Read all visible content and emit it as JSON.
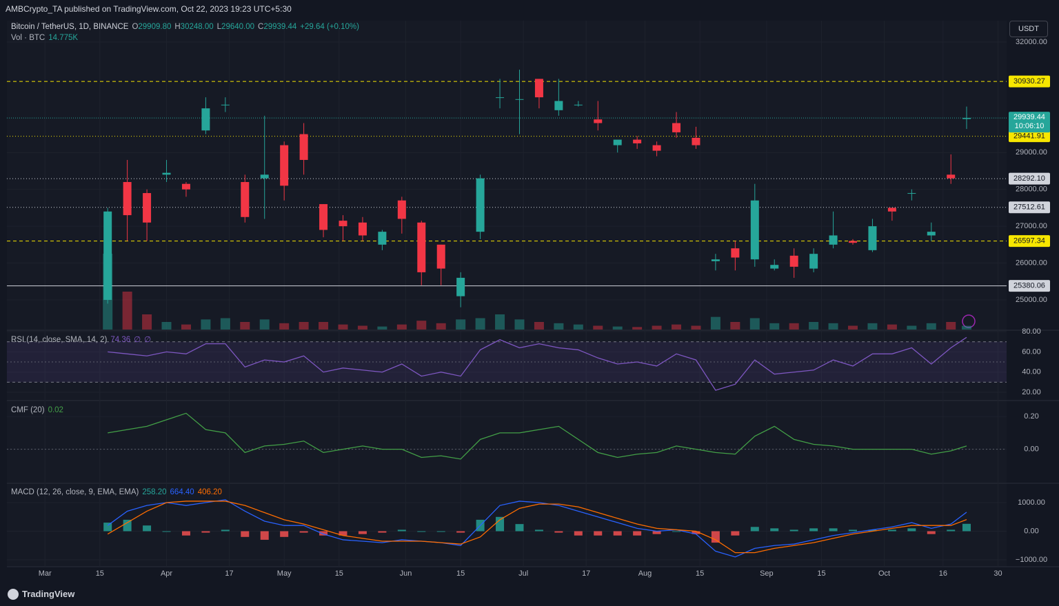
{
  "published": "AMBCrypto_TA published on TradingView.com, Oct 22, 2023 19:23 UTC+5:30",
  "brand": "TradingView",
  "chart_data": [
    {
      "type": "candlestick",
      "title": "Bitcoin / TetherUS, 1D, BINANCE",
      "legend": [
        {
          "key": "O",
          "text": "29909.80"
        },
        {
          "key": "H",
          "text": "30248.00"
        },
        {
          "key": "L",
          "text": "29640.00"
        },
        {
          "key": "C",
          "text": "29939.44"
        },
        {
          "key": "",
          "text": "+29.64 (+0.10%)"
        }
      ],
      "currency": "USDT",
      "x": [
        16,
        21,
        26,
        31,
        36,
        41,
        46,
        51,
        56,
        61,
        66,
        71,
        76,
        81,
        86,
        91,
        96,
        101,
        106,
        111,
        116,
        121,
        126,
        131,
        136,
        141,
        146,
        151,
        156,
        161,
        166,
        171,
        176,
        181,
        186,
        191,
        196,
        201,
        206,
        211,
        216,
        221,
        226,
        231,
        235
      ],
      "open": [
        25000,
        28200,
        27900,
        28400,
        28150,
        29600,
        30300,
        28200,
        28300,
        29200,
        29500,
        27600,
        27150,
        27100,
        26500,
        27700,
        27100,
        26500,
        25100,
        26850,
        30500,
        30450,
        31000,
        30150,
        30300,
        29900,
        29200,
        29350,
        29200,
        29800,
        29400,
        26050,
        26400,
        26100,
        25850,
        26200,
        25850,
        26500,
        26600,
        26350,
        27500,
        27900,
        26750,
        28400,
        29909.8
      ],
      "high": [
        27500,
        28800,
        28000,
        28800,
        28200,
        30500,
        30500,
        28400,
        30000,
        29300,
        29800,
        27600,
        27300,
        27250,
        26900,
        27800,
        27150,
        26500,
        25750,
        28400,
        31000,
        31250,
        31000,
        31000,
        30400,
        30400,
        29300,
        29450,
        29300,
        30100,
        29700,
        26250,
        26600,
        28150,
        26100,
        26400,
        26400,
        27400,
        26650,
        27200,
        27500,
        28000,
        27100,
        28950,
        30248
      ],
      "low": [
        24900,
        26600,
        26600,
        28200,
        27800,
        29500,
        30100,
        27100,
        27200,
        27700,
        28400,
        26700,
        26600,
        26600,
        26350,
        26800,
        25400,
        25400,
        24800,
        26650,
        30200,
        29500,
        30200,
        30000,
        30250,
        29600,
        29000,
        29100,
        28900,
        29400,
        29100,
        25800,
        25800,
        25900,
        25800,
        25600,
        25750,
        26400,
        26500,
        26300,
        27150,
        27700,
        26600,
        28150,
        29640
      ],
      "close": [
        27400,
        27300,
        27100,
        28450,
        28000,
        30200,
        30300,
        27250,
        28400,
        28100,
        28800,
        26900,
        27000,
        26750,
        26850,
        27200,
        25750,
        25850,
        25600,
        28300,
        30500,
        30450,
        30500,
        30400,
        30300,
        29800,
        29350,
        29250,
        29050,
        29550,
        29200,
        26100,
        26150,
        27700,
        25950,
        25900,
        26250,
        26750,
        26550,
        27000,
        27400,
        27900,
        26850,
        28300,
        29939.44
      ],
      "up_color": "#26a69a",
      "down_color": "#f23645",
      "xlim": [
        -9.7,
        245.2
      ],
      "xticks": [
        {
          "value": 0,
          "label": "Mar"
        },
        {
          "value": 14,
          "label": "15"
        },
        {
          "value": 31,
          "label": "Apr"
        },
        {
          "value": 47,
          "label": "17"
        },
        {
          "value": 61,
          "label": "May"
        },
        {
          "value": 75,
          "label": "15"
        },
        {
          "value": 92,
          "label": "Jun"
        },
        {
          "value": 106,
          "label": "15"
        },
        {
          "value": 122,
          "label": "Jul"
        },
        {
          "value": 138,
          "label": "17"
        },
        {
          "value": 153,
          "label": "Aug"
        },
        {
          "value": 167,
          "label": "15"
        },
        {
          "value": 184,
          "label": "Sep"
        },
        {
          "value": 198,
          "label": "15"
        },
        {
          "value": 214,
          "label": "Oct"
        },
        {
          "value": 229,
          "label": "16"
        },
        {
          "value": 243,
          "label": "30"
        }
      ],
      "ylim": [
        24195,
        32580
      ],
      "yticks": [
        {
          "value": 25000,
          "label": "25000.00"
        },
        {
          "value": 26000,
          "label": "26000.00"
        },
        {
          "value": 27000,
          "label": "27000.00"
        },
        {
          "value": 28000,
          "label": "28000.00"
        },
        {
          "value": 29000,
          "label": "29000.00"
        },
        {
          "value": 32000,
          "label": "32000.00"
        }
      ],
      "levels": [
        {
          "value": 30930.27,
          "label": "30930.27",
          "color": "#f7e600",
          "style": "dashed"
        },
        {
          "value": 29441.91,
          "label": "29441.91",
          "color": "#f7e600",
          "style": "dotted"
        },
        {
          "value": 28292.1,
          "label": "28292.10",
          "color": "#d1d4dc",
          "style": "dotted"
        },
        {
          "value": 27512.61,
          "label": "27512.61",
          "color": "#d1d4dc",
          "style": "dotted"
        },
        {
          "value": 26597.34,
          "label": "26597.34",
          "color": "#f7e600",
          "style": "dashed"
        },
        {
          "value": 25380.06,
          "label": "25380.06",
          "color": "#d1d4dc",
          "style": "solid"
        }
      ],
      "last_price_label": "29939.44",
      "countdown": "10:06:10",
      "volume": {
        "name": "Vol · BTC",
        "value_label": "14.775K",
        "values": [
          300,
          150,
          60,
          30,
          20,
          40,
          45,
          30,
          40,
          25,
          30,
          30,
          20,
          15,
          12,
          20,
          35,
          25,
          40,
          45,
          60,
          40,
          30,
          25,
          20,
          15,
          12,
          10,
          15,
          20,
          15,
          50,
          30,
          45,
          25,
          25,
          30,
          25,
          15,
          25,
          20,
          15,
          25,
          30,
          14.775
        ]
      }
    },
    {
      "type": "line",
      "title": "RSI (14, close, SMA, 14, 2)",
      "legend_values": [
        "74.36",
        "∅",
        "∅"
      ],
      "series": [
        {
          "color": "#7e57c2",
          "values": [
            60,
            58,
            56,
            60,
            58,
            68,
            68,
            45,
            52,
            50,
            56,
            40,
            44,
            42,
            40,
            48,
            36,
            40,
            36,
            62,
            72,
            64,
            68,
            64,
            62,
            54,
            48,
            50,
            46,
            58,
            52,
            22,
            28,
            52,
            38,
            40,
            42,
            52,
            46,
            58,
            58,
            64,
            48,
            64,
            74.36
          ]
        }
      ],
      "bands": [
        70,
        30
      ],
      "midline": 50,
      "ylim": [
        13.9,
        80.7
      ],
      "yticks": [
        {
          "value": 20,
          "label": "20.00"
        },
        {
          "value": 40,
          "label": "40.00"
        },
        {
          "value": 60,
          "label": "60.00"
        },
        {
          "value": 80,
          "label": "80.00"
        }
      ]
    },
    {
      "type": "line",
      "title": "CMF (20)",
      "legend_values": [
        "0.02"
      ],
      "series": [
        {
          "color": "#43a047",
          "values": [
            0.1,
            0.12,
            0.14,
            0.18,
            0.22,
            0.12,
            0.1,
            -0.02,
            0.02,
            0.03,
            0.05,
            -0.02,
            0,
            0.02,
            0,
            0,
            -0.05,
            -0.04,
            -0.06,
            0.06,
            0.1,
            0.1,
            0.12,
            0.14,
            0.06,
            -0.02,
            -0.05,
            -0.03,
            -0.02,
            0.02,
            0,
            -0.02,
            -0.03,
            0.08,
            0.14,
            0.06,
            0.03,
            0.02,
            0,
            0,
            0,
            0,
            -0.03,
            -0.01,
            0.02
          ]
        }
      ],
      "midline": 0,
      "ylim": [
        -0.204,
        0.285
      ],
      "yticks": [
        {
          "value": 0,
          "label": "0.00"
        },
        {
          "value": 0.2,
          "label": "0.20"
        }
      ]
    },
    {
      "type": "macd",
      "title": "MACD (12, 26, close, 9, EMA, EMA)",
      "legend_values": [
        "258.20",
        "664.40",
        "406.20"
      ],
      "histogram": {
        "up_color": "#26a69a",
        "down_color": "#ff5252",
        "values": [
          300,
          400,
          200,
          0,
          -150,
          -50,
          50,
          -200,
          -300,
          -200,
          -50,
          -150,
          -150,
          -100,
          -50,
          50,
          0,
          0,
          -50,
          400,
          500,
          250,
          50,
          -50,
          -150,
          -150,
          -150,
          -150,
          -100,
          0,
          -100,
          -400,
          -150,
          150,
          100,
          50,
          100,
          100,
          50,
          50,
          50,
          100,
          -100,
          50,
          258.2
        ]
      },
      "series": [
        {
          "color": "#2962ff",
          "values": [
            200,
            700,
            900,
            1000,
            900,
            1000,
            1100,
            700,
            350,
            200,
            200,
            -100,
            -300,
            -350,
            -400,
            -300,
            -350,
            -400,
            -500,
            200,
            900,
            1050,
            1000,
            900,
            700,
            500,
            300,
            100,
            0,
            50,
            -100,
            -700,
            -900,
            -600,
            -500,
            -450,
            -300,
            -150,
            -50,
            50,
            150,
            300,
            100,
            250,
            664.4
          ]
        },
        {
          "color": "#ff6d00",
          "values": [
            -100,
            300,
            700,
            1000,
            1050,
            1050,
            1050,
            900,
            650,
            400,
            250,
            50,
            -150,
            -250,
            -350,
            -350,
            -350,
            -400,
            -450,
            -200,
            400,
            800,
            950,
            950,
            850,
            650,
            450,
            250,
            100,
            50,
            0,
            -300,
            -750,
            -750,
            -600,
            -500,
            -400,
            -250,
            -100,
            0,
            100,
            200,
            200,
            200,
            406.2
          ]
        }
      ],
      "ylim": [
        -1241,
        1627
      ],
      "yticks": [
        {
          "value": -1000,
          "label": "−1000.00"
        },
        {
          "value": 0,
          "label": "0.00"
        },
        {
          "value": 1000,
          "label": "1000.00"
        }
      ]
    }
  ]
}
